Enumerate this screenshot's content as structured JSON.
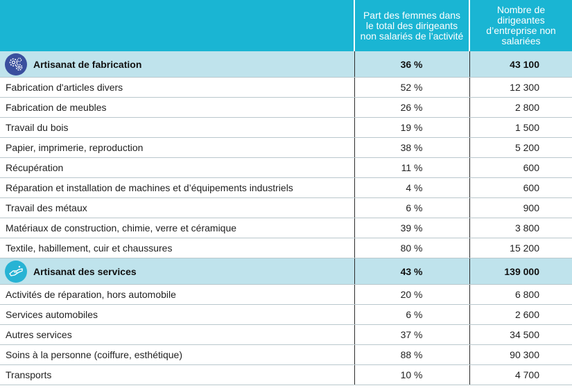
{
  "header": {
    "col_share": "Part des femmes dans le total des dirigeants non salariés de l’activité",
    "col_count": "Nombre de dirigeantes d’entreprise non salariées"
  },
  "colors": {
    "header_bg": "#1ab5d3",
    "section_bg": "#bfe3ec",
    "icon_fabrication": "#3a4f9e",
    "icon_services": "#27b3d4"
  },
  "sections": [
    {
      "icon": "gears-icon",
      "label": "Artisanat de fabrication",
      "share": "36 %",
      "count": "43 100",
      "rows": [
        {
          "label": "Fabrication d'articles divers",
          "share": "52 %",
          "count": "12 300"
        },
        {
          "label": "Fabrication de meubles",
          "share": "26 %",
          "count": "2 800"
        },
        {
          "label": "Travail du bois",
          "share": "19 %",
          "count": "1 500"
        },
        {
          "label": "Papier, imprimerie, reproduction",
          "share": "38 %",
          "count": "5 200"
        },
        {
          "label": "Récupération",
          "share": "11 %",
          "count": "600"
        },
        {
          "label": "Réparation et installation de machines et d’équipements industriels",
          "share": "4 %",
          "count": "600"
        },
        {
          "label": "Travail des métaux",
          "share": "6 %",
          "count": "900"
        },
        {
          "label": "Matériaux de construction, chimie, verre et céramique",
          "share": "39 %",
          "count": "3 800"
        },
        {
          "label": "Textile, habillement, cuir et chaussures",
          "share": "80 %",
          "count": "15 200"
        }
      ]
    },
    {
      "icon": "handshake-icon",
      "label": "Artisanat des services",
      "share": "43 %",
      "count": "139 000",
      "rows": [
        {
          "label": "Activités de réparation, hors automobile",
          "share": "20 %",
          "count": "6 800"
        },
        {
          "label": "Services automobiles",
          "share": "6 %",
          "count": "2 600"
        },
        {
          "label": "Autres services",
          "share": "37 %",
          "count": "34 500"
        },
        {
          "label": "Soins à la personne (coiffure, esthétique)",
          "share": "88 %",
          "count": "90 300"
        },
        {
          "label": "Transports",
          "share": "10 %",
          "count": "4 700"
        }
      ]
    }
  ]
}
